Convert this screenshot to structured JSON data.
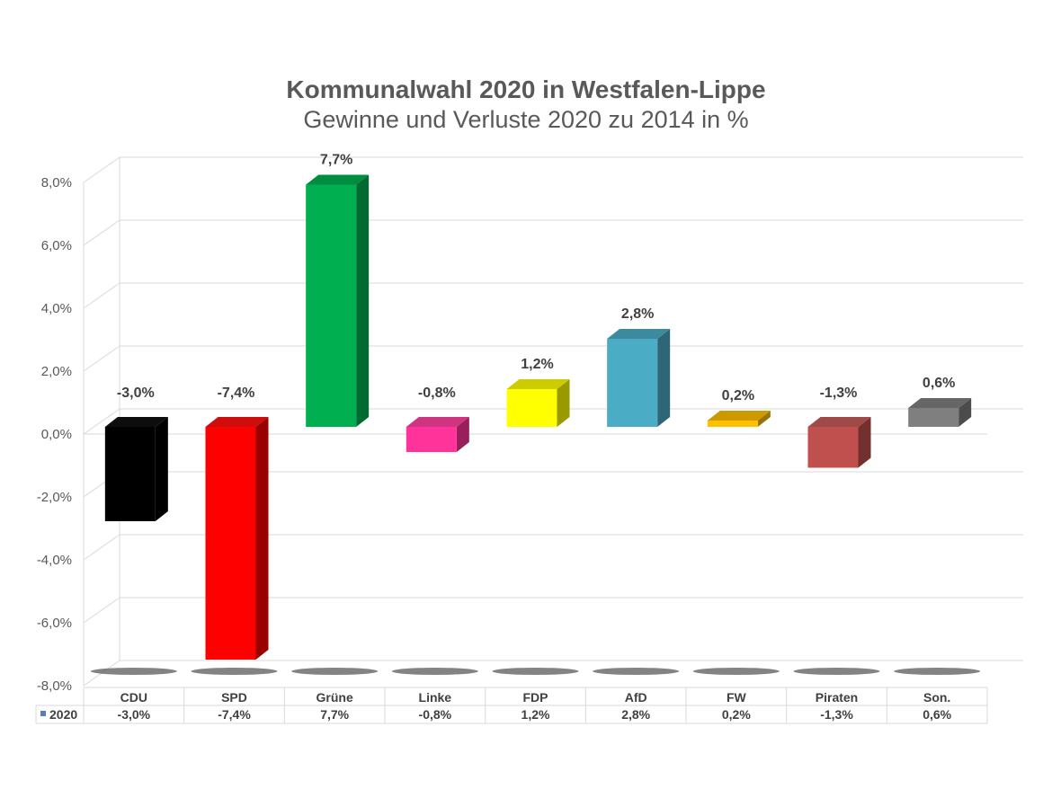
{
  "chart_data": {
    "type": "bar",
    "title": "Kommunalwahl 2020 in Westfalen-Lippe",
    "subtitle": "Gewinne und Verluste 2020 zu 2014 in %",
    "categories": [
      "CDU",
      "SPD",
      "Grüne",
      "Linke",
      "FDP",
      "AfD",
      "FW",
      "Piraten",
      "Son."
    ],
    "series": [
      {
        "name": "2020",
        "values": [
          -3.0,
          -7.4,
          7.7,
          -0.8,
          1.2,
          2.8,
          0.2,
          -1.3,
          0.6
        ],
        "labels": [
          "-3,0%",
          "-7,4%",
          "7,7%",
          "-0,8%",
          "1,2%",
          "2,8%",
          "0,2%",
          "-1,3%",
          "0,6%"
        ]
      }
    ],
    "colors": [
      "#000000",
      "#ff0000",
      "#00b050",
      "#ff3399",
      "#ffff00",
      "#4bacc6",
      "#ffc000",
      "#c0504d",
      "#7f7f7f"
    ],
    "ylim": [
      -8,
      8
    ],
    "yticks": [
      8,
      6,
      4,
      2,
      0,
      -2,
      -4,
      -6,
      -8
    ],
    "ytick_labels": [
      "8,0%",
      "6,0%",
      "4,0%",
      "2,0%",
      "0,0%",
      "-2,0%",
      "-4,0%",
      "-6,0%",
      "-8,0%"
    ],
    "grid": true,
    "legend": "data-table",
    "style": "3d-column"
  }
}
